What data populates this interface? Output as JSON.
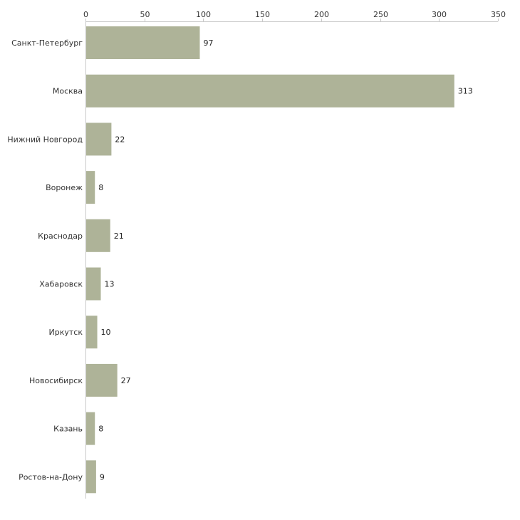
{
  "chart_data": {
    "type": "bar",
    "orientation": "horizontal",
    "title": "",
    "xlabel": "",
    "ylabel": "",
    "categories": [
      "Санкт-Петербург",
      "Москва",
      "Нижний Новгород",
      "Воронеж",
      "Краснодар",
      "Хабаровск",
      "Иркутск",
      "Новосибирск",
      "Казань",
      "Ростов-на-Дону"
    ],
    "values": [
      97,
      313,
      22,
      8,
      21,
      13,
      10,
      27,
      8,
      9
    ],
    "xlim": [
      0,
      350
    ],
    "xticks": [
      0,
      50,
      100,
      150,
      200,
      250,
      300,
      350
    ],
    "axis_position": "top",
    "grid": false,
    "legend": "none",
    "bar_color": "#aeb398"
  }
}
